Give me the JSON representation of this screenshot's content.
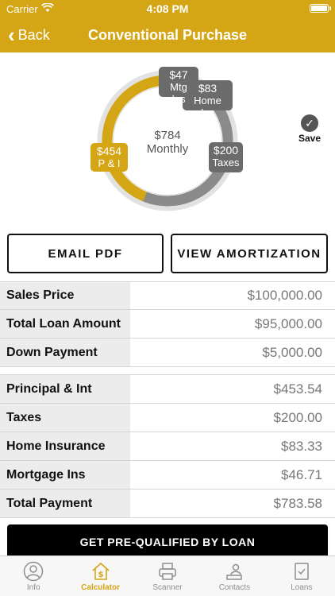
{
  "status": {
    "carrier": "Carrier",
    "time": "4:08 PM"
  },
  "nav": {
    "back_label": "Back",
    "title": "Conventional Purchase"
  },
  "save_label": "Save",
  "chart_data": {
    "type": "pie",
    "center_value": "$784",
    "center_label": "Monthly",
    "slices": [
      {
        "name": "P & I",
        "value": 453.54,
        "label": "$454",
        "color": "#d4a514"
      },
      {
        "name": "Taxes",
        "value": 200.0,
        "label": "$200",
        "color": "#6b6b6b"
      },
      {
        "name": "Home Ins",
        "value": 83.33,
        "label": "$83",
        "color": "#6b6b6b"
      },
      {
        "name": "Mtg Ins",
        "value": 46.71,
        "label": "$47",
        "color": "#6b6b6b"
      }
    ]
  },
  "buttons": {
    "email_pdf": "EMAIL PDF",
    "view_amortization": "VIEW AMORTIZATION"
  },
  "summary": [
    {
      "label": "Sales Price",
      "value": "$100,000.00"
    },
    {
      "label": "Total Loan Amount",
      "value": "$95,000.00"
    },
    {
      "label": "Down Payment",
      "value": "$5,000.00"
    }
  ],
  "payments": [
    {
      "label": "Principal & Int",
      "value": "$453.54"
    },
    {
      "label": "Taxes",
      "value": "$200.00"
    },
    {
      "label": "Home Insurance",
      "value": "$83.33"
    },
    {
      "label": "Mortgage Ins",
      "value": "$46.71"
    },
    {
      "label": "Total Payment",
      "value": "$783.58"
    }
  ],
  "cta_label": "GET PRE-QUALIFIED BY LOAN",
  "tabs": [
    {
      "label": "Info",
      "icon": "person-icon"
    },
    {
      "label": "Calculator",
      "icon": "house-dollar-icon"
    },
    {
      "label": "Scanner",
      "icon": "scanner-icon"
    },
    {
      "label": "Contacts",
      "icon": "contacts-icon"
    },
    {
      "label": "Loans",
      "icon": "checklist-icon"
    }
  ]
}
